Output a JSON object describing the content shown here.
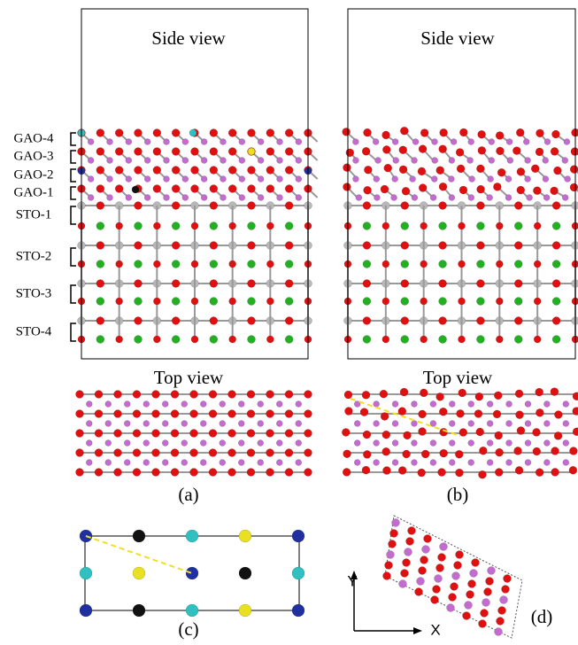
{
  "panels": [
    {
      "label": "(a)",
      "side_view": "Side view",
      "top_view": "Top view"
    },
    {
      "label": "(b)",
      "side_view": "Side view",
      "top_view": "Top view"
    },
    {
      "label": "(c)"
    },
    {
      "label": "(d)"
    }
  ],
  "layer_labels": [
    "GAO-4",
    "GAO-3",
    "GAO-2",
    "GAO-1",
    "STO-1",
    "STO-2",
    "STO-3",
    "STO-4"
  ],
  "axes": {
    "y": "Y",
    "x": "X"
  }
}
